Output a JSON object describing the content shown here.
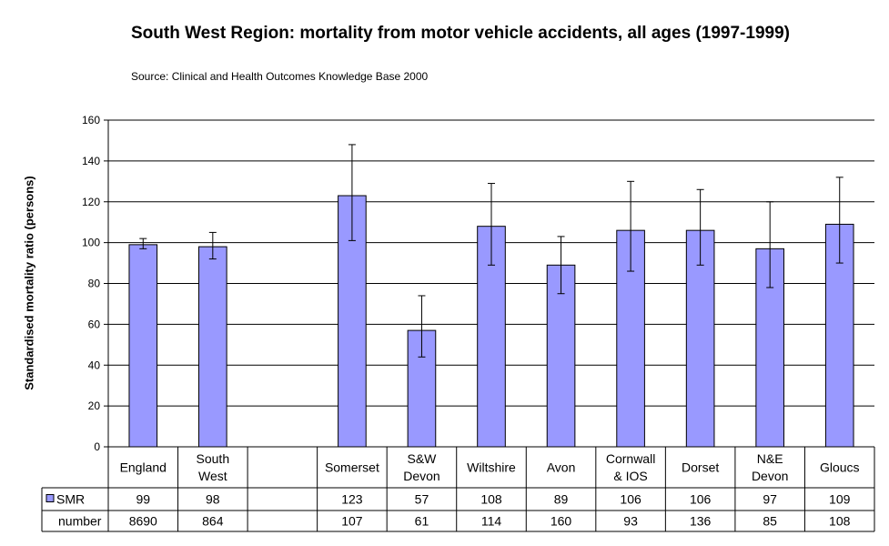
{
  "chart_data": {
    "type": "bar",
    "title": "South West Region:  mortality from motor vehicle accidents, all ages (1997-1999)",
    "subtitle": "Source: Clinical and Health Outcomes Knowledge Base 2000",
    "ylabel": "Standardised mortality ratio (persons)",
    "ylim": [
      0,
      160
    ],
    "yticks": [
      "0",
      "20",
      "40",
      "60",
      "80",
      "100",
      "120",
      "140",
      "160"
    ],
    "grid": true,
    "categories": [
      [
        "England"
      ],
      [
        "South",
        "West"
      ],
      [
        ""
      ],
      [
        "Somerset"
      ],
      [
        "S&W",
        "Devon"
      ],
      [
        "Wiltshire"
      ],
      [
        "Avon"
      ],
      [
        "Cornwall",
        "& IOS"
      ],
      [
        "Dorset"
      ],
      [
        "N&E",
        "Devon"
      ],
      [
        "Gloucs"
      ]
    ],
    "series": [
      {
        "name": "SMR",
        "color": "#9999ff",
        "values": [
          99,
          98,
          null,
          123,
          57,
          108,
          89,
          106,
          106,
          97,
          109
        ],
        "error_low": [
          97,
          92,
          null,
          101,
          44,
          89,
          75,
          86,
          89,
          78,
          90
        ],
        "error_high": [
          102,
          105,
          null,
          148,
          74,
          129,
          103,
          130,
          126,
          120,
          132
        ]
      }
    ],
    "table_rows": [
      {
        "label": "SMR",
        "values": [
          "99",
          "98",
          "",
          "123",
          "57",
          "108",
          "89",
          "106",
          "106",
          "97",
          "109"
        ]
      },
      {
        "label": "number",
        "values": [
          "8690",
          "864",
          "",
          "107",
          "61",
          "114",
          "160",
          "93",
          "136",
          "85",
          "108"
        ]
      }
    ]
  }
}
